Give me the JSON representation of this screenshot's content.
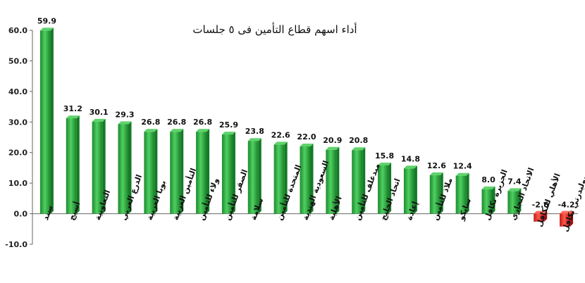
{
  "chart_data": {
    "type": "bar",
    "title": "أداء اسهم قطاع التأمين فى ٥ جلسات",
    "categories": [
      "سند",
      "أسيج",
      "التعاونية",
      "الدرع العربي",
      "بوبا العربية",
      "التأمين العربية",
      "ولاء للتأمين",
      "الصقر للتأمين",
      "سلامة",
      "المتحدة للتأمين",
      "السعودية الهندية",
      "الأهلية",
      "ميدغلف للتأمين",
      "اتحاد الخليج",
      "إعادة",
      "ملاذ للتأمين",
      "سايكو",
      "الجزيرة تكافل",
      "الاتحاد التجاري",
      "الأهلي للتكافل",
      "سوليدرتي تكافل"
    ],
    "values": [
      59.9,
      31.2,
      30.1,
      29.3,
      26.8,
      26.8,
      26.8,
      25.9,
      23.8,
      22.6,
      22.0,
      20.9,
      20.8,
      15.8,
      14.8,
      12.6,
      12.4,
      8.0,
      7.4,
      -2.6,
      -4.2
    ],
    "value_labels": [
      "59.9",
      "31.2",
      "30.1",
      "29.3",
      "26.8",
      "26.8",
      "26.8",
      "25.9",
      "23.8",
      "22.6",
      "22.0",
      "20.9",
      "20.8",
      "15.8",
      "14.8",
      "12.6",
      "12.4",
      "8.0",
      "7.4",
      "-2.6",
      "-4.2"
    ],
    "ylim": [
      -10,
      60
    ],
    "yticks": [
      "60.0",
      "50.0",
      "40.0",
      "30.0",
      "20.0",
      "10.0",
      "0.0",
      "-10.0"
    ],
    "ytick_values": [
      60,
      50,
      40,
      30,
      20,
      10,
      0,
      -10
    ],
    "grid": false,
    "colors": {
      "positive": "#22a23a",
      "positive_light": "#5fd36b",
      "positive_dark": "#147a26",
      "negative": "#e02222",
      "negative_light": "#ff6a5a",
      "negative_dark": "#a31212",
      "axis": "#666666"
    }
  }
}
